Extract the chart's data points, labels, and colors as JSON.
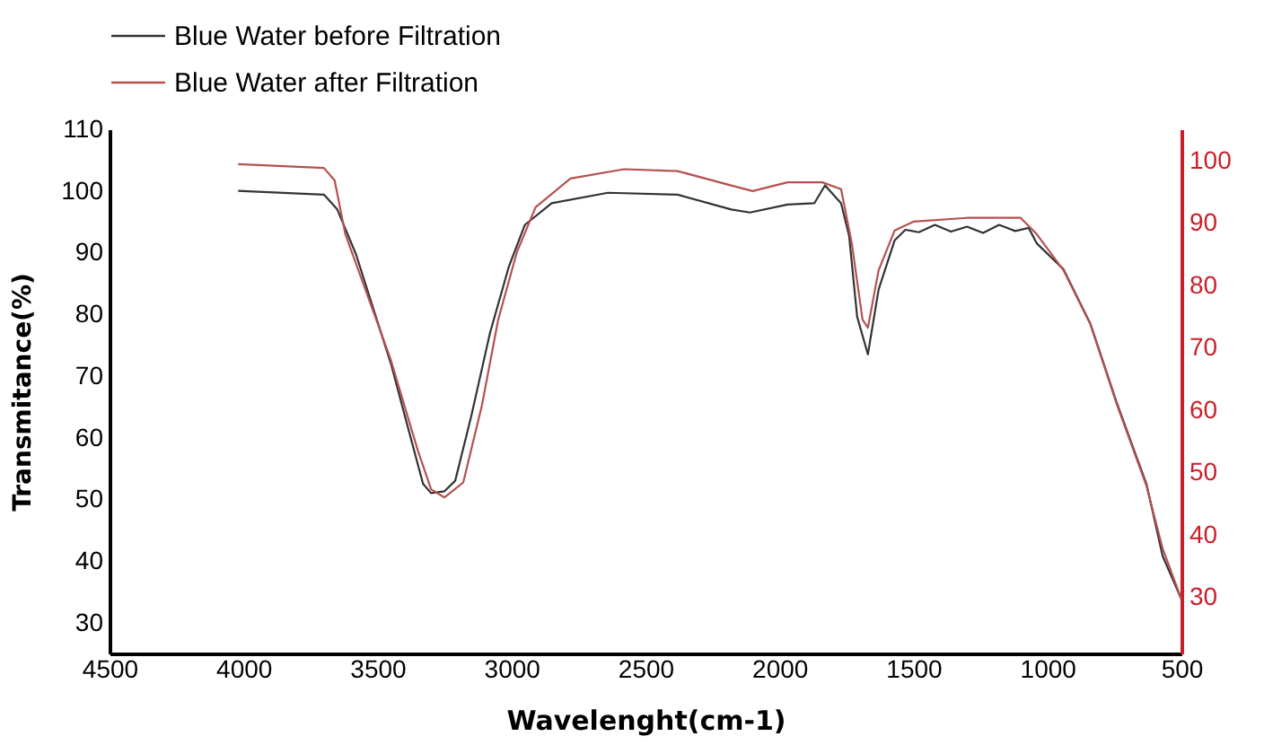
{
  "chart_data": {
    "type": "line",
    "xlabel": "Wavelenght(cm-1)",
    "ylabel": "Transmitance(%)",
    "xlim": [
      4500,
      500
    ],
    "xticks": [
      4500,
      4000,
      3500,
      3000,
      2500,
      2000,
      1500,
      1000,
      500
    ],
    "ylim": [
      25,
      110
    ],
    "yticks": [
      30,
      40,
      50,
      60,
      70,
      80,
      90,
      100,
      110
    ],
    "y2lim": [
      21,
      105
    ],
    "y2ticks": [
      30,
      40,
      50,
      60,
      70,
      80,
      90,
      100
    ],
    "legend": "top",
    "grid": false,
    "line_style": "solid",
    "marker": "none",
    "series": [
      {
        "name": "Blue Water before Filtration",
        "color": "#333333",
        "x": [
          4020,
          3700,
          3650,
          3580,
          3450,
          3380,
          3330,
          3300,
          3250,
          3210,
          3150,
          3080,
          3010,
          2950,
          2850,
          2640,
          2380,
          2180,
          2110,
          1970,
          1870,
          1830,
          1770,
          1740,
          1710,
          1670,
          1630,
          1570,
          1530,
          1480,
          1420,
          1360,
          1300,
          1240,
          1180,
          1120,
          1070,
          1040,
          940,
          840,
          740,
          630,
          570,
          500
        ],
        "values": [
          100,
          99.4,
          97,
          89.7,
          72,
          60.6,
          52.5,
          51,
          51.3,
          53,
          63.5,
          77,
          87.7,
          94.5,
          98,
          99.7,
          99.4,
          97,
          96.5,
          97.8,
          98,
          100.9,
          98,
          92.7,
          79.6,
          73.5,
          84,
          92,
          93.7,
          93.3,
          94.5,
          93.4,
          94.2,
          93.2,
          94.5,
          93.5,
          94,
          91.5,
          87.3,
          78.5,
          65.5,
          52.4,
          40.8,
          33.8
        ]
      },
      {
        "name": "Blue Water after Filtration",
        "color": "#b5514f",
        "axis": "y2",
        "x": [
          4020,
          3700,
          3660,
          3620,
          3450,
          3350,
          3300,
          3250,
          3180,
          3110,
          3050,
          2980,
          2910,
          2780,
          2580,
          2380,
          2180,
          2100,
          1970,
          1840,
          1770,
          1730,
          1690,
          1670,
          1630,
          1570,
          1500,
          1300,
          1100,
          1040,
          940,
          840,
          740,
          630,
          570,
          500
        ],
        "values": [
          99.4,
          98.8,
          96.8,
          88.2,
          68,
          53.6,
          47.3,
          46,
          48.4,
          60.8,
          74.4,
          85.3,
          92.5,
          97.1,
          98.6,
          98.3,
          96,
          95.1,
          96.5,
          96.5,
          95.4,
          86.7,
          74.5,
          73.2,
          82.4,
          88.8,
          90.2,
          90.8,
          90.8,
          88.2,
          82.4,
          73.8,
          60.8,
          47.8,
          37.8,
          29.7
        ]
      }
    ]
  }
}
